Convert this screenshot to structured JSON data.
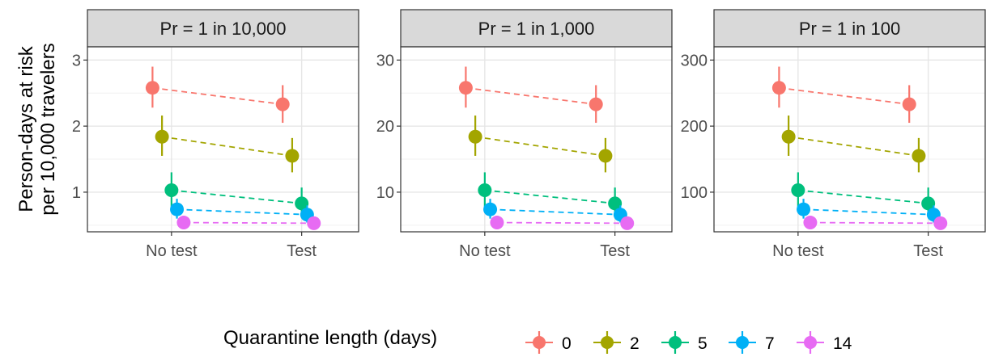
{
  "chart_data": {
    "type": "scatter",
    "layout": "faceted",
    "facets": [
      {
        "label": "Pr = 1 in 10,000",
        "ylim": [
          0.4,
          3.2
        ],
        "yticks": [
          1,
          2,
          3
        ],
        "ytick_labels": [
          "1",
          "2",
          "3"
        ]
      },
      {
        "label": "Pr = 1 in 1,000",
        "ylim": [
          4,
          32
        ],
        "yticks": [
          10,
          20,
          30
        ],
        "ytick_labels": [
          "10",
          "20",
          "30"
        ]
      },
      {
        "label": "Pr = 1 in 100",
        "ylim": [
          40,
          320
        ],
        "yticks": [
          100,
          200,
          300
        ],
        "ytick_labels": [
          "100",
          "200",
          "300"
        ]
      }
    ],
    "categories": [
      "No test",
      "Test"
    ],
    "ylabel": [
      "Person-days at risk",
      "per 10,000 travelers"
    ],
    "legend": {
      "title": "Quarantine length (days)",
      "position": "bottom"
    },
    "grid": true,
    "series_base_values_per_10000": [
      {
        "name": "0",
        "color": "#F8766D",
        "values": [
          2.58,
          2.33
        ],
        "lower": [
          2.28,
          2.05
        ],
        "upper": [
          2.9,
          2.62
        ]
      },
      {
        "name": "2",
        "color": "#A3A500",
        "values": [
          1.84,
          1.55
        ],
        "lower": [
          1.55,
          1.3
        ],
        "upper": [
          2.16,
          1.82
        ]
      },
      {
        "name": "5",
        "color": "#00BF7D",
        "values": [
          1.03,
          0.83
        ],
        "lower": [
          0.78,
          0.62
        ],
        "upper": [
          1.3,
          1.07
        ]
      },
      {
        "name": "7",
        "color": "#00B0F6",
        "values": [
          0.74,
          0.66
        ],
        "lower": [
          0.6,
          0.54
        ],
        "upper": [
          0.9,
          0.8
        ]
      },
      {
        "name": "14",
        "color": "#E76BF3",
        "values": [
          0.54,
          0.53
        ],
        "lower": [
          0.48,
          0.47
        ],
        "upper": [
          0.6,
          0.6
        ]
      }
    ],
    "facet_multipliers": [
      1,
      10,
      100
    ]
  }
}
